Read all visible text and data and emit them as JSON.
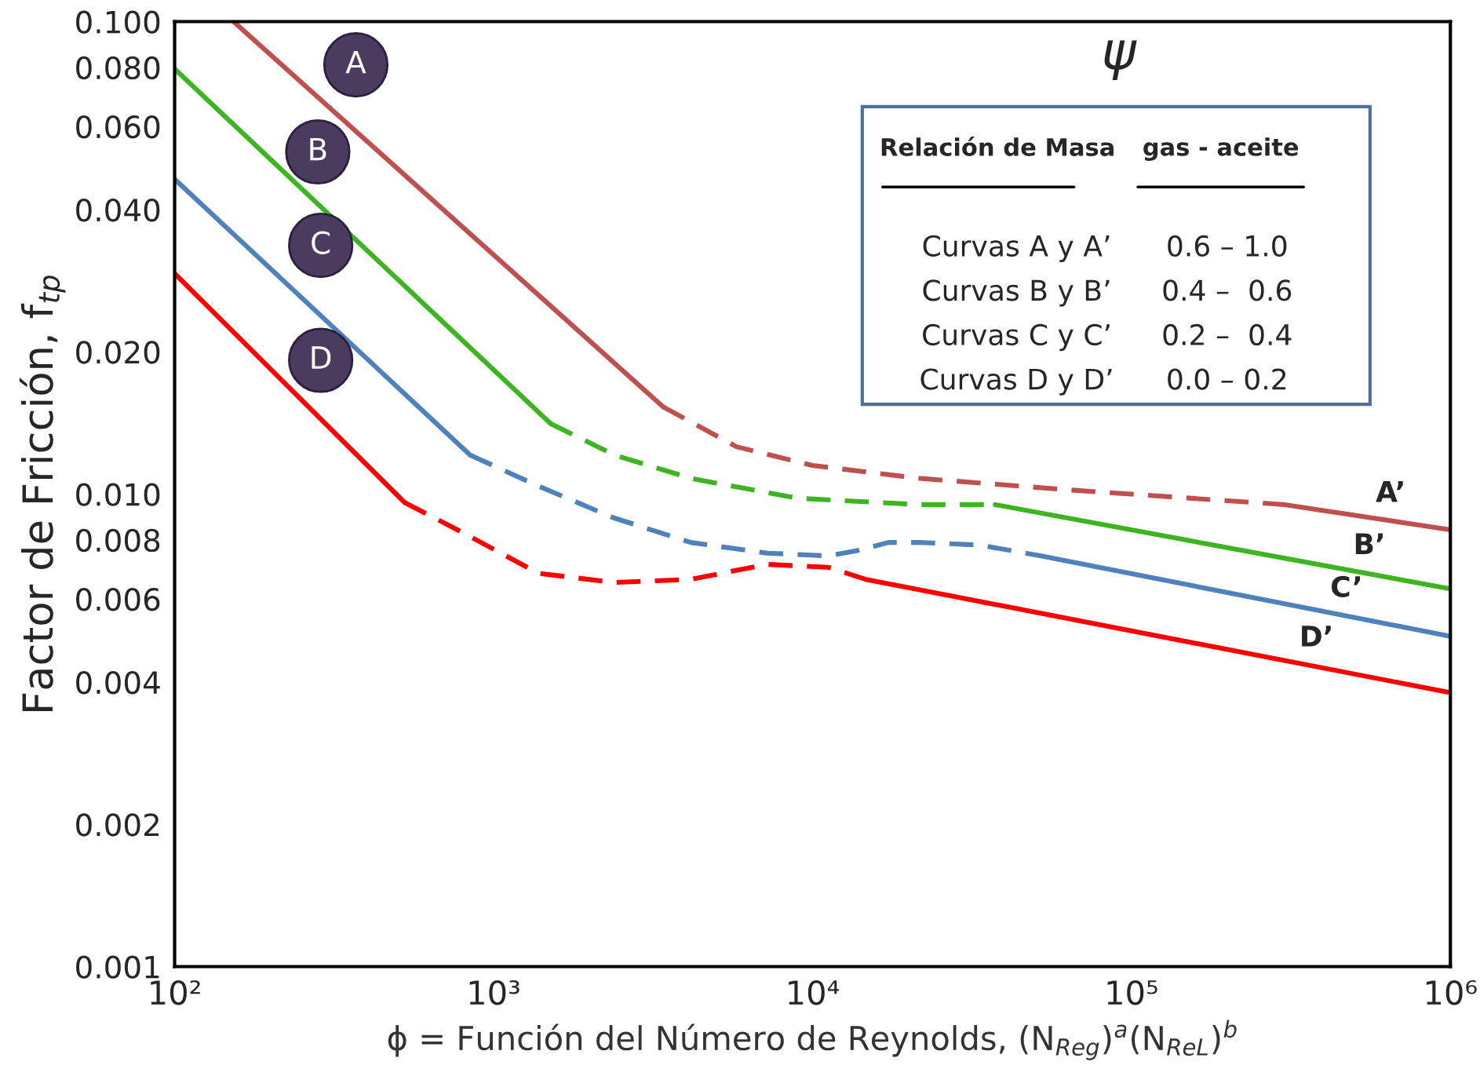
{
  "chart_data": {
    "type": "line",
    "log": "xy",
    "xlabel": "ϕ = Función del Número de Reynolds, (N$_{Reg}$)$^{a}$(N$_{ReL}$)$^{b}$",
    "ylabel": "Factor de Fricción, f$_{tp}$",
    "xlim": [
      100,
      1000000
    ],
    "ylim": [
      0.001,
      0.1
    ],
    "xticks": [
      {
        "value": 100,
        "label": "10²"
      },
      {
        "value": 1000,
        "label": "10³"
      },
      {
        "value": 10000,
        "label": "10⁴"
      },
      {
        "value": 100000,
        "label": "10⁵"
      },
      {
        "value": 1000000,
        "label": "10⁶"
      }
    ],
    "yticks": [
      0.001,
      0.002,
      0.004,
      0.006,
      0.008,
      {
        "value": 0.01,
        "label": "0.010"
      },
      {
        "value": 0.02,
        "label": "0.020"
      },
      {
        "value": 0.04,
        "label": "0.040"
      },
      {
        "value": 0.06,
        "label": "0.060"
      },
      {
        "value": 0.08,
        "label": "0.080"
      },
      {
        "value": 0.1,
        "label": "0.100"
      }
    ],
    "grid": false,
    "legend": false,
    "marker": "none",
    "series": [
      {
        "color": "#c0504d",
        "line_style": "solid",
        "x": [
          153,
          3400
        ],
        "values": [
          0.1,
          0.0153
        ]
      },
      {
        "color": "#c0504d",
        "line_style": "dashed",
        "x": [
          3400,
          5770,
          9980,
          21600,
          64700,
          302000
        ],
        "values": [
          0.0153,
          0.0126,
          0.0115,
          0.0108,
          0.0102,
          0.0095
        ]
      },
      {
        "color": "#c0504d",
        "line_style": "solid",
        "x": [
          302000,
          1000000
        ],
        "values": [
          0.0095,
          0.0084
        ]
      },
      {
        "color": "#3cb521",
        "line_style": "solid",
        "x": [
          100,
          1510
        ],
        "values": [
          0.0794,
          0.0141
        ]
      },
      {
        "color": "#3cb521",
        "line_style": "dashed",
        "x": [
          1510,
          2390,
          4150,
          8960,
          21600,
          37400
        ],
        "values": [
          0.0141,
          0.0121,
          0.0108,
          0.0098,
          0.0095,
          0.0095
        ]
      },
      {
        "color": "#3cb521",
        "line_style": "solid",
        "x": [
          37400,
          1000000
        ],
        "values": [
          0.0095,
          0.0063
        ]
      },
      {
        "color": "#4f81bd",
        "line_style": "solid",
        "x": [
          100,
          844
        ],
        "values": [
          0.0464,
          0.0121
        ]
      },
      {
        "color": "#4f81bd",
        "line_style": "dashed",
        "x": [
          844,
          1380,
          2390,
          4150,
          7200,
          11200,
          13900,
          17300,
          21600,
          33500,
          52000
        ],
        "values": [
          0.0121,
          0.0104,
          0.0089,
          0.0079,
          0.0075,
          0.0074,
          0.0076,
          0.0079,
          0.0079,
          0.0078,
          0.0074
        ]
      },
      {
        "color": "#4f81bd",
        "line_style": "solid",
        "x": [
          52000,
          1000000
        ],
        "values": [
          0.0074,
          0.005
        ]
      },
      {
        "color": "#ff0000",
        "line_style": "solid",
        "x": [
          100,
          526
        ],
        "values": [
          0.0293,
          0.0096
        ]
      },
      {
        "color": "#ff0000",
        "line_style": "dashed",
        "x": [
          526,
          798,
          1380,
          2390,
          4150,
          7200,
          11200,
          14700
        ],
        "values": [
          0.0096,
          0.0083,
          0.0068,
          0.0065,
          0.0066,
          0.0071,
          0.007,
          0.0066
        ]
      },
      {
        "color": "#ff0000",
        "line_style": "solid",
        "x": [
          14700,
          1000000
        ],
        "values": [
          0.0066,
          0.0038
        ]
      }
    ],
    "annotations": [
      {
        "text": "A",
        "x": 370,
        "y": 0.081
      },
      {
        "text": "B",
        "x": 281,
        "y": 0.053
      },
      {
        "text": "C",
        "x": 287,
        "y": 0.0336
      },
      {
        "text": "D",
        "x": 287,
        "y": 0.0192
      },
      {
        "text": "A’",
        "x": 583000,
        "y": 0.0089
      },
      {
        "text": "B’",
        "x": 496000,
        "y": 0.0069
      },
      {
        "text": "C’",
        "x": 420000,
        "y": 0.0056
      },
      {
        "text": "D’",
        "x": 336000,
        "y": 0.0044
      },
      "ψ",
      "Relación de Masa",
      "gas - aceite",
      "Curvas A y A’",
      "0.6 – 1.0",
      "Curvas B y B’",
      "0.4 –  0.6",
      "Curvas C y C’",
      "0.2 –  0.4",
      "Curvas D y D’",
      "0.0 – 0.2"
    ]
  }
}
